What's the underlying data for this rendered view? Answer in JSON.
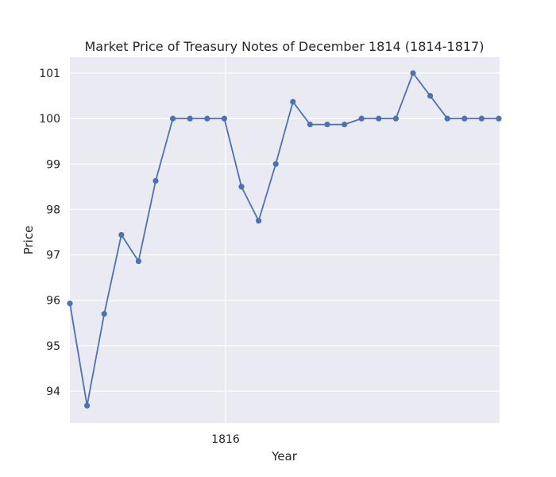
{
  "chart_data": {
    "type": "line",
    "title": "Market Price of Treasury Notes of December 1814 (1814-1817)",
    "xlabel": "Year",
    "ylabel": "Price",
    "grid": true,
    "legend": "none",
    "x_tick_labels": [
      "1816"
    ],
    "y_ticks": [
      94,
      95,
      96,
      97,
      98,
      99,
      100,
      101
    ],
    "ylim": [
      93.3,
      101.35
    ],
    "series": [
      {
        "values": [
          95.93,
          93.68,
          95.7,
          97.44,
          96.86,
          98.63,
          100,
          100,
          100,
          100,
          98.5,
          97.75,
          99,
          100.37,
          99.87,
          99.87,
          99.87,
          100,
          100,
          100,
          101,
          100.5,
          100,
          100,
          100,
          100
        ],
        "color": "#4c72b0"
      }
    ],
    "colors": {
      "background": "#eaeaf2",
      "grid": "#ffffff",
      "line": "#4c72b0"
    }
  }
}
